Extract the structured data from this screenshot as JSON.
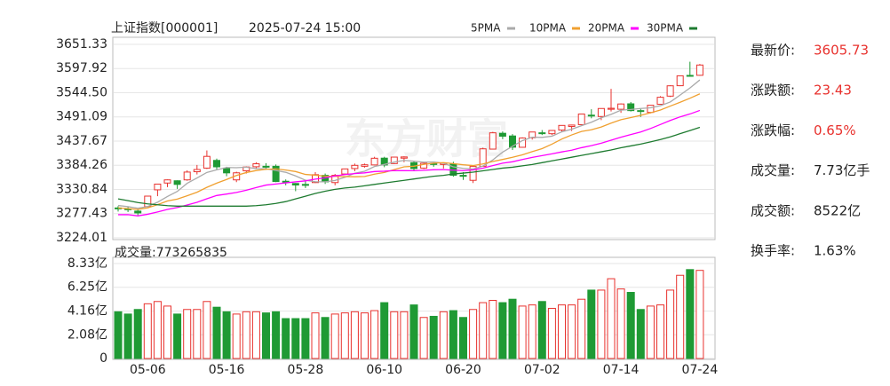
{
  "chart_data": [
    {
      "type": "candlestick",
      "title": "上证指数[000001]",
      "subtitle": "2025-07-24 15:00",
      "watermark": "东方财富",
      "up_color": "#e8322e",
      "down_color": "#1f9a34",
      "categories": [
        null,
        null,
        null,
        "05-06",
        null,
        null,
        null,
        null,
        null,
        null,
        null,
        "05-16",
        null,
        null,
        null,
        null,
        null,
        null,
        null,
        "05-28",
        null,
        null,
        null,
        null,
        null,
        null,
        null,
        "06-10",
        null,
        null,
        null,
        null,
        null,
        null,
        null,
        "06-20",
        null,
        null,
        null,
        null,
        null,
        null,
        null,
        "07-02",
        null,
        null,
        null,
        null,
        null,
        null,
        null,
        "07-14",
        null,
        null,
        null,
        null,
        null,
        null,
        null,
        "07-24"
      ],
      "open": [
        3290,
        3288,
        3283,
        3293,
        3330,
        3345,
        3350,
        3352,
        3370,
        3378,
        3395,
        3378,
        3352,
        3372,
        3381,
        3382,
        3382,
        3349,
        3344,
        3342,
        3346,
        3362,
        3346,
        3365,
        3377,
        3382,
        3385,
        3400,
        3388,
        3400,
        3390,
        3378,
        3388,
        3386,
        3387,
        3362,
        3351,
        3382,
        3420,
        3455,
        3449,
        3424,
        3445,
        3456,
        3454,
        3462,
        3470,
        3474,
        3495,
        3492,
        3508,
        3508,
        3520,
        3505,
        3501,
        3519,
        3537,
        3560,
        3582.8,
        3583
      ],
      "high": [
        3294,
        3292,
        3287,
        3316,
        3343,
        3353,
        3351,
        3373,
        3385,
        3417,
        3399,
        3381,
        3370,
        3382,
        3391,
        3389,
        3386,
        3353,
        3345,
        3352,
        3369,
        3366,
        3365,
        3377,
        3388,
        3388,
        3403,
        3403,
        3403,
        3404,
        3393,
        3390,
        3390,
        3390,
        3392,
        3369,
        3384,
        3423,
        3458,
        3459,
        3453,
        3446,
        3458,
        3462,
        3462,
        3473,
        3474,
        3498,
        3508,
        3510,
        3553,
        3521,
        3524,
        3509,
        3517,
        3537,
        3561,
        3582,
        3613,
        3608
      ],
      "low": [
        3282,
        3281,
        3274,
        3293,
        3316,
        3336,
        3332,
        3350,
        3364,
        3376,
        3374,
        3360,
        3347,
        3366,
        3376,
        3374,
        3347,
        3340,
        3327,
        3334,
        3345,
        3343,
        3340,
        3363,
        3371,
        3379,
        3384,
        3380,
        3387,
        3391,
        3371,
        3376,
        3381,
        3377,
        3359,
        3352,
        3345,
        3381,
        3420,
        3442,
        3418,
        3423,
        3441,
        3451,
        3451,
        3458,
        3460,
        3474,
        3488,
        3484,
        3503,
        3500,
        3503,
        3491,
        3499,
        3519,
        3535,
        3559,
        3580,
        3582
      ],
      "close": [
        3288.41,
        3286.65,
        3279.03,
        3316.11,
        3342.67,
        3352,
        3342,
        3369.24,
        3374.87,
        3403.95,
        3380.82,
        3367.46,
        3367.58,
        3380.48,
        3387.57,
        3380.19,
        3348.37,
        3346.84,
        3340.69,
        3339.93,
        3363.45,
        3347.49,
        3361.98,
        3376.2,
        3384.1,
        3385.36,
        3399.77,
        3384.82,
        3402.32,
        3402.66,
        3377,
        3388.73,
        3387.4,
        3388.81,
        3362.11,
        3359.9,
        3381.58,
        3420.57,
        3455.97,
        3448.45,
        3424.23,
        3444.43,
        3457.75,
        3454.79,
        3461.15,
        3472.32,
        3473.13,
        3497.48,
        3493.05,
        3509.68,
        3510.18,
        3519.65,
        3505,
        3503.78,
        3516.83,
        3534.48,
        3559.79,
        3581.86,
        3582.3,
        3605.73
      ],
      "series": [
        {
          "name": "5PMA",
          "color": "#aaaaaa",
          "values": [
            3295.4,
            3292.8,
            3289.3,
            3293.1,
            3302.6,
            3315.3,
            3326.4,
            3344.4,
            3356.2,
            3368.4,
            3374.2,
            3379.3,
            3378.9,
            3380.1,
            3376.8,
            3376.7,
            3372.8,
            3368.7,
            3360.7,
            3351.2,
            3347.9,
            3347.7,
            3350.7,
            3357.8,
            3366.6,
            3371,
            3381.5,
            3386.1,
            3391.3,
            3395,
            3393.3,
            3391.1,
            3391.6,
            3388.9,
            3380.8,
            3377.4,
            3376,
            3382.6,
            3396,
            3413.3,
            3426.2,
            3438.7,
            3446.2,
            3445.9,
            3448.5,
            3458.1,
            3463.8,
            3471.8,
            3479.4,
            3489.1,
            3496.7,
            3506,
            3507.5,
            3509.7,
            3511.1,
            3515.9,
            3524,
            3539.3,
            3555.1,
            3572.8
          ]
        },
        {
          "name": "10PMA",
          "color": "#f0a030",
          "values": [
            3290.2,
            3288.4,
            3286.7,
            3290.1,
            3297.3,
            3305.4,
            3309.6,
            3316.9,
            3324.7,
            3335.5,
            3344.8,
            3352.9,
            3361.7,
            3368.2,
            3372.6,
            3375.5,
            3376.1,
            3373.8,
            3370.4,
            3364,
            3362.3,
            3360.3,
            3359.7,
            3359.3,
            3358.9,
            3359.5,
            3364.6,
            3368.4,
            3374.6,
            3380.8,
            3382.2,
            3386.3,
            3388.9,
            3390.1,
            3387.9,
            3385.4,
            3383.6,
            3387.1,
            3392.5,
            3397.1,
            3401.8,
            3407.4,
            3414.4,
            3421,
            3430.9,
            3442.2,
            3451.3,
            3459,
            3462.7,
            3468.8,
            3477.4,
            3484.9,
            3489.7,
            3494.6,
            3500.1,
            3506.3,
            3515,
            3523.4,
            3532.4,
            3542
          ]
        },
        {
          "name": "20PMA",
          "color": "#ff00ff",
          "values": [
            3275.1,
            3275.2,
            3272.4,
            3276.1,
            3281.2,
            3286.7,
            3290.8,
            3296.5,
            3302.4,
            3310.3,
            3317.5,
            3320.7,
            3324.2,
            3329.2,
            3335,
            3340.5,
            3342.9,
            3345.4,
            3347.6,
            3349.8,
            3353.6,
            3356.6,
            3360.7,
            3363.8,
            3365.8,
            3367.5,
            3370.4,
            3371.1,
            3372.5,
            3372.4,
            3372.3,
            3373.3,
            3374.3,
            3374.7,
            3373.4,
            3372.5,
            3374.1,
            3377.8,
            3383.6,
            3389,
            3392,
            3396.9,
            3401.7,
            3405.6,
            3409.4,
            3413.8,
            3417.5,
            3423.1,
            3427.6,
            3433,
            3439.6,
            3446.2,
            3452.1,
            3457.8,
            3465.5,
            3474.3,
            3483.2,
            3491.2,
            3497.6,
            3505.4
          ]
        },
        {
          "name": "30PMA",
          "color": "#1e7b30",
          "values": [
            3310,
            3306,
            3302,
            3299,
            3297,
            3295,
            3294,
            3294,
            3294,
            3294,
            3294,
            3294,
            3294,
            3294,
            3295,
            3297,
            3300,
            3304,
            3310,
            3316,
            3322,
            3327,
            3331,
            3334,
            3336,
            3339,
            3342,
            3345,
            3348,
            3351,
            3354,
            3357,
            3360,
            3362,
            3365,
            3367,
            3369,
            3372,
            3375,
            3378,
            3380,
            3383,
            3386,
            3390,
            3394,
            3398,
            3402,
            3406,
            3410,
            3414,
            3418,
            3423,
            3427,
            3431,
            3436,
            3441,
            3447,
            3454,
            3461,
            3468
          ]
        }
      ],
      "ylim": [
        3224.01,
        3651.33
      ],
      "yticks": [
        3224.01,
        3277.43,
        3330.84,
        3384.26,
        3437.67,
        3491.09,
        {
          "value": 3544.5,
          "label": "3544.50"
        },
        3597.92,
        3651.33
      ],
      "grid": true
    },
    {
      "type": "bar",
      "title": "成交量:773265835",
      "values": [
        4.1,
        3.9,
        4.3,
        4.8,
        5.0,
        4.6,
        3.9,
        4.3,
        4.3,
        5.0,
        4.5,
        4.1,
        3.9,
        4.1,
        4.1,
        4.0,
        4.1,
        3.5,
        3.5,
        3.5,
        4.0,
        3.6,
        3.9,
        4.0,
        4.1,
        4.0,
        4.2,
        4.9,
        4.1,
        4.1,
        4.7,
        3.6,
        3.7,
        4.1,
        4.2,
        3.6,
        4.3,
        4.9,
        5.1,
        4.9,
        5.2,
        4.6,
        4.7,
        5.0,
        4.4,
        4.7,
        4.7,
        5.2,
        6.0,
        6.0,
        7.0,
        6.1,
        5.8,
        4.3,
        4.6,
        4.7,
        6.0,
        7.3,
        7.8,
        7.73
      ],
      "ylim": [
        0,
        8.33
      ],
      "yticks": [
        0,
        {
          "value": 2.08,
          "label": "2.08亿"
        },
        {
          "value": 4.16,
          "label": "4.16亿"
        },
        {
          "value": 6.25,
          "label": "6.25亿"
        },
        {
          "value": 8.33,
          "label": "8.33亿"
        }
      ],
      "grid": true
    }
  ],
  "info": [
    {
      "label": "最新价:",
      "value": "3605.73",
      "color": "#e8322e"
    },
    {
      "label": "涨跌额:",
      "value": "23.43",
      "color": "#e8322e"
    },
    {
      "label": "涨跌幅:",
      "value": "0.65%",
      "color": "#e8322e"
    },
    {
      "label": "成交量:",
      "value": "7.73亿手",
      "color": "#222222"
    },
    {
      "label": "成交额:",
      "value": "8522亿",
      "color": "#222222"
    },
    {
      "label": "换手率:",
      "value": "1.63%",
      "color": "#222222"
    }
  ]
}
